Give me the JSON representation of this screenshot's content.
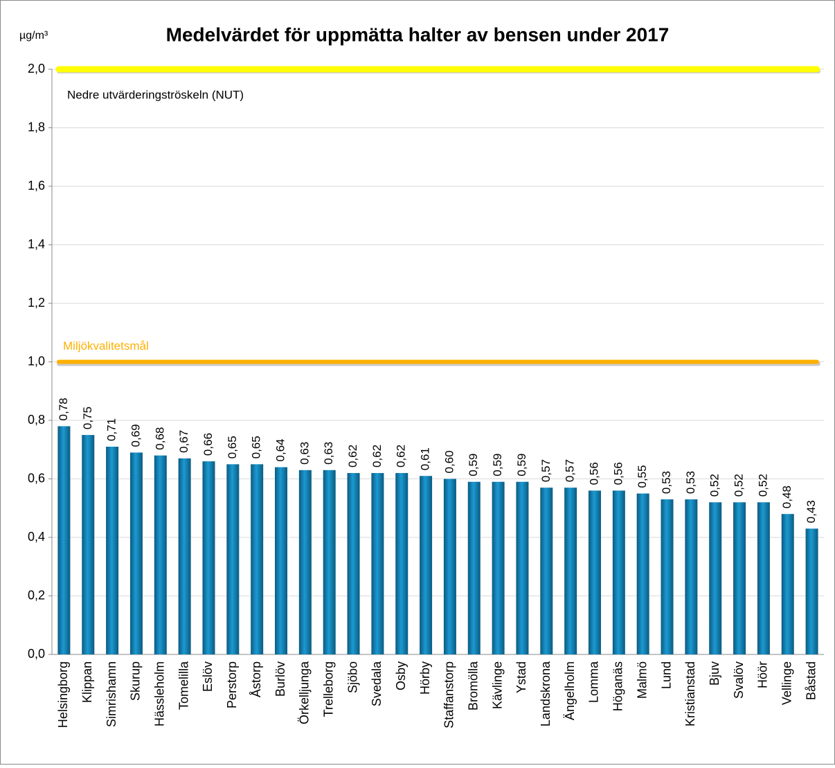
{
  "chart_data": {
    "type": "bar",
    "title": "Medelvärdet för uppmätta halter av bensen under 2017",
    "y_unit": "µg/m³",
    "categories": [
      "Helsingborg",
      "Klippan",
      "Simrishamn",
      "Skurup",
      "Hässleholm",
      "Tomelilla",
      "Eslöv",
      "Perstorp",
      "Åstorp",
      "Burlöv",
      "Örkelljunga",
      "Trelleborg",
      "Sjöbo",
      "Svedala",
      "Osby",
      "Hörby",
      "Staffanstorp",
      "Bromölla",
      "Kävlinge",
      "Ystad",
      "Landskrona",
      "Ängelholm",
      "Lomma",
      "Höganäs",
      "Malmö",
      "Lund",
      "Kristianstad",
      "Bjuv",
      "Svalöv",
      "Höör",
      "Vellinge",
      "Båstad"
    ],
    "values": [
      0.78,
      0.75,
      0.71,
      0.69,
      0.68,
      0.67,
      0.66,
      0.65,
      0.65,
      0.64,
      0.63,
      0.63,
      0.62,
      0.62,
      0.62,
      0.61,
      0.6,
      0.59,
      0.59,
      0.59,
      0.57,
      0.57,
      0.56,
      0.56,
      0.55,
      0.53,
      0.53,
      0.52,
      0.52,
      0.52,
      0.48,
      0.43
    ],
    "value_labels": [
      "0,78",
      "0,75",
      "0,71",
      "0,69",
      "0,68",
      "0,67",
      "0,66",
      "0,65",
      "0,65",
      "0,64",
      "0,63",
      "0,63",
      "0,62",
      "0,62",
      "0,62",
      "0,61",
      "0,60",
      "0,59",
      "0,59",
      "0,59",
      "0,57",
      "0,57",
      "0,56",
      "0,56",
      "0,55",
      "0,53",
      "0,53",
      "0,52",
      "0,52",
      "0,52",
      "0,48",
      "0,43"
    ],
    "color": "#1b9ad2",
    "ylim": [
      0,
      2.0
    ],
    "yticks": [
      {
        "value": 0,
        "label": "0,0"
      },
      {
        "value": 0.2,
        "label": "0,2"
      },
      {
        "value": 0.4,
        "label": "0,4"
      },
      {
        "value": 0.6,
        "label": "0,6"
      },
      {
        "value": 0.8,
        "label": "0,8"
      },
      {
        "value": 1.0,
        "label": "1,0"
      },
      {
        "value": 1.2,
        "label": "1,2"
      },
      {
        "value": 1.4,
        "label": "1,4"
      },
      {
        "value": 1.6,
        "label": "1,6"
      },
      {
        "value": 1.8,
        "label": "1,8"
      },
      {
        "value": 2.0,
        "label": "2,0"
      }
    ],
    "grid": true,
    "reference_lines": [
      {
        "value": 2.0,
        "label": "Nedre utvärderingströskeln (NUT)",
        "color": "#ffff00",
        "label_color": "#000000"
      },
      {
        "value": 1.0,
        "label": "Miljökvalitetsmål",
        "color": "#ffb000",
        "label_color": "#ffb000"
      }
    ]
  }
}
